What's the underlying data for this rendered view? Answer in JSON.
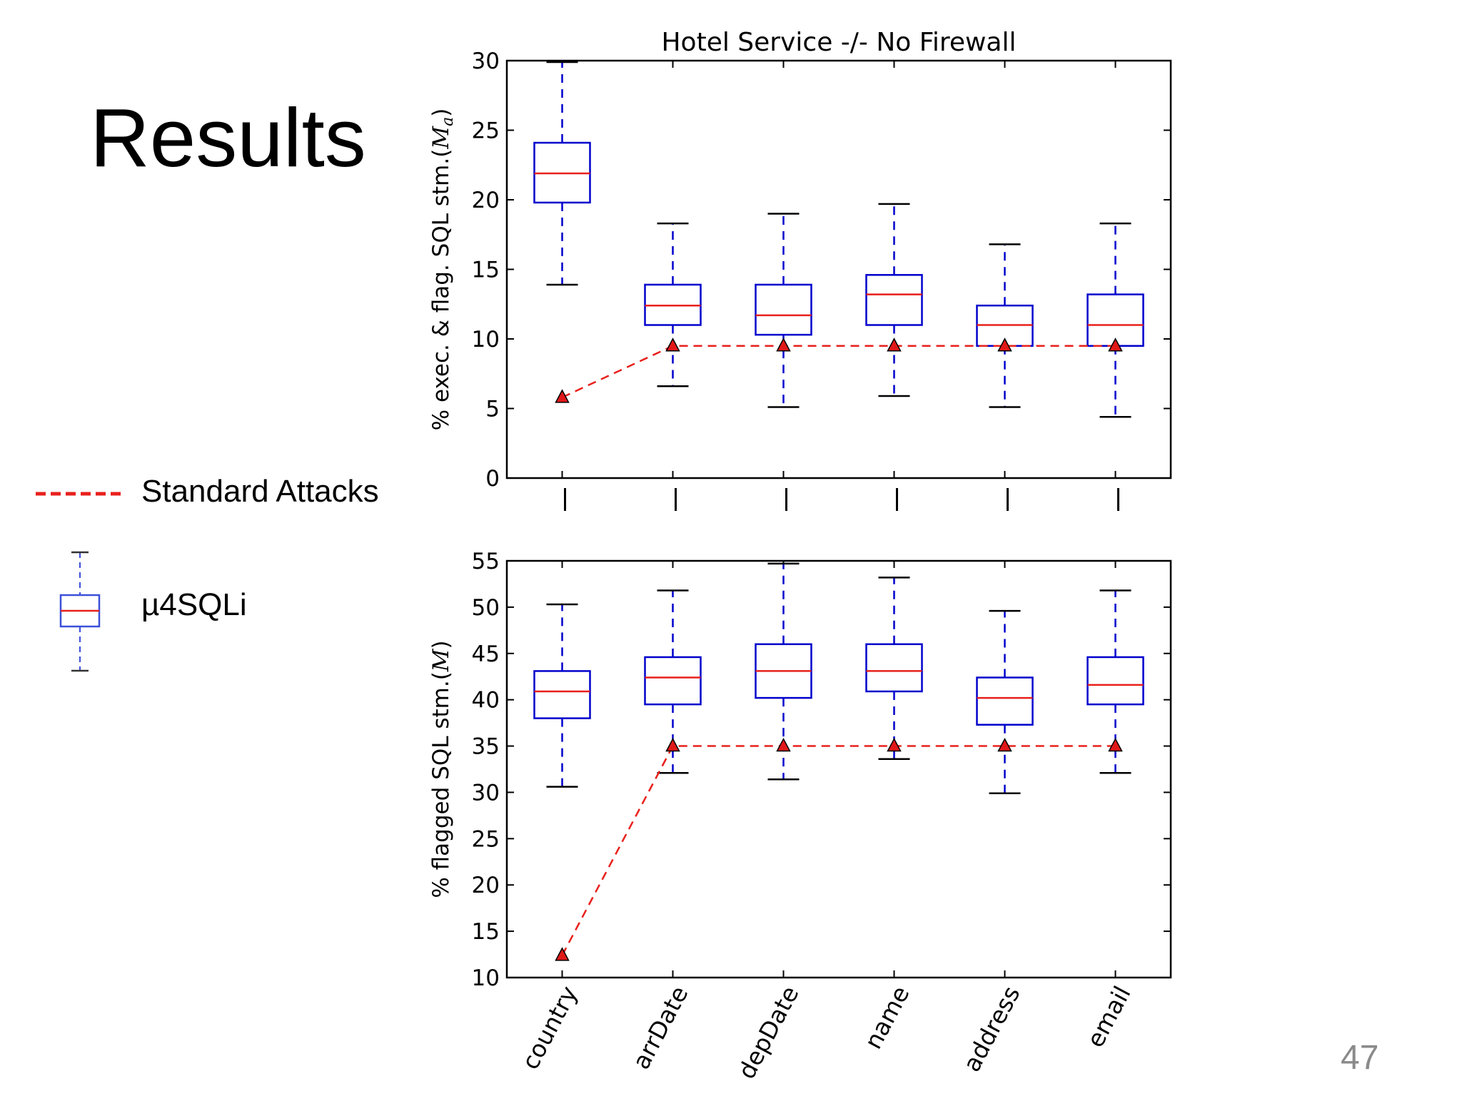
{
  "slide": {
    "title": "Results",
    "page_number": "47",
    "legend": {
      "standard_attacks_label": "Standard Attacks",
      "mu4sqli_label": "µ4SQLi"
    }
  },
  "colors": {
    "box": "#0000cc",
    "median": "#e8201c",
    "standard_attacks": "#e8201c",
    "marker_fill": "#e01818"
  },
  "chart_data": [
    {
      "type": "box",
      "title": "Hotel Service -/- No Firewall",
      "ylabel": "% exec. & flag. SQL stm.(",
      "ylabel_symbol": "M",
      "ylabel_subscript": "a",
      "ylabel_close": ")",
      "ylim": [
        0,
        30
      ],
      "yticks": [
        0,
        5,
        10,
        15,
        20,
        25,
        30
      ],
      "categories": [
        "country",
        "arrDate",
        "depDate",
        "name",
        "address",
        "email"
      ],
      "show_category_labels": false,
      "boxes": [
        {
          "whisker_low": 13.9,
          "q1": 19.8,
          "median": 21.9,
          "q3": 24.1,
          "whisker_high": 29.9
        },
        {
          "whisker_low": 6.6,
          "q1": 11.0,
          "median": 12.4,
          "q3": 13.9,
          "whisker_high": 18.3
        },
        {
          "whisker_low": 5.1,
          "q1": 10.3,
          "median": 11.7,
          "q3": 13.9,
          "whisker_high": 19.0
        },
        {
          "whisker_low": 5.9,
          "q1": 11.0,
          "median": 13.2,
          "q3": 14.6,
          "whisker_high": 19.7
        },
        {
          "whisker_low": 5.1,
          "q1": 9.5,
          "median": 11.0,
          "q3": 12.4,
          "whisker_high": 16.8
        },
        {
          "whisker_low": 4.4,
          "q1": 9.5,
          "median": 11.0,
          "q3": 13.2,
          "whisker_high": 18.3
        }
      ],
      "series": [
        {
          "name": "Standard Attacks",
          "values": [
            5.8,
            9.5,
            9.5,
            9.5,
            9.5,
            9.5
          ]
        }
      ]
    },
    {
      "type": "box",
      "title": "",
      "ylabel": "% flagged SQL stm.(",
      "ylabel_symbol": "M",
      "ylabel_subscript": "",
      "ylabel_close": ")",
      "ylim": [
        10,
        55
      ],
      "yticks": [
        10,
        15,
        20,
        25,
        30,
        35,
        40,
        45,
        50,
        55
      ],
      "categories": [
        "country",
        "arrDate",
        "depDate",
        "name",
        "address",
        "email"
      ],
      "show_category_labels": true,
      "boxes": [
        {
          "whisker_low": 30.6,
          "q1": 38.0,
          "median": 40.9,
          "q3": 43.1,
          "whisker_high": 50.3
        },
        {
          "whisker_low": 32.1,
          "q1": 39.5,
          "median": 42.4,
          "q3": 44.6,
          "whisker_high": 51.8
        },
        {
          "whisker_low": 31.4,
          "q1": 40.2,
          "median": 43.1,
          "q3": 46.0,
          "whisker_high": 54.7
        },
        {
          "whisker_low": 33.6,
          "q1": 40.9,
          "median": 43.1,
          "q3": 46.0,
          "whisker_high": 53.2
        },
        {
          "whisker_low": 29.9,
          "q1": 37.3,
          "median": 40.2,
          "q3": 42.4,
          "whisker_high": 49.6
        },
        {
          "whisker_low": 32.1,
          "q1": 39.5,
          "median": 41.6,
          "q3": 44.6,
          "whisker_high": 51.8
        }
      ],
      "series": [
        {
          "name": "Standard Attacks",
          "values": [
            12.4,
            35.0,
            35.0,
            35.0,
            35.0,
            35.0
          ]
        }
      ]
    }
  ]
}
